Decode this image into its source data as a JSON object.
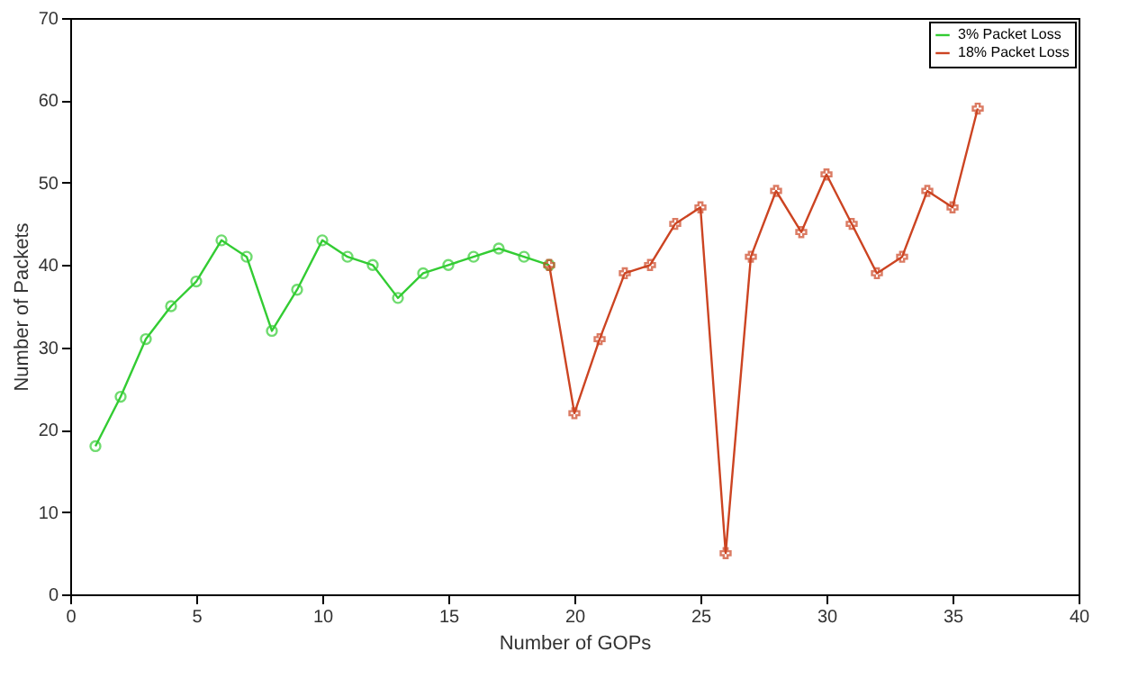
{
  "chart_data": {
    "type": "line",
    "xlabel": "Number of GOPs",
    "ylabel": "Number of Packets",
    "xlim": [
      0,
      40
    ],
    "xticks": [
      0,
      5,
      10,
      15,
      20,
      25,
      30,
      35,
      40
    ],
    "ylim": [
      0,
      70
    ],
    "yticks": [
      0,
      10,
      20,
      30,
      40,
      50,
      60,
      70
    ],
    "grid": false,
    "legend": "top right",
    "series": [
      {
        "name": "3% Packet Loss",
        "color": "#33cc33",
        "marker": "circle",
        "x": [
          1,
          2,
          3,
          4,
          5,
          6,
          7,
          8,
          9,
          10,
          11,
          12,
          13,
          14,
          15,
          16,
          17,
          18,
          19
        ],
        "values": [
          18,
          24,
          31,
          35,
          38,
          43,
          41,
          32,
          37,
          43,
          41,
          40,
          36,
          39,
          40,
          41,
          42,
          41,
          40
        ]
      },
      {
        "name": "18% Packet Loss",
        "color": "#cc4422",
        "marker": "cross",
        "x": [
          19,
          20,
          21,
          22,
          23,
          24,
          25,
          26,
          27,
          28,
          29,
          30,
          31,
          32,
          33,
          34,
          35,
          36
        ],
        "values": [
          40,
          22,
          31,
          39,
          40,
          45,
          47,
          5,
          41,
          49,
          44,
          51,
          45,
          39,
          41,
          49,
          47,
          59
        ]
      }
    ]
  }
}
